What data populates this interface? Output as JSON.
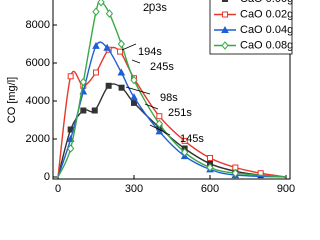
{
  "chart_data": {
    "type": "line",
    "y_label": "CO [mg/l]",
    "xlim": [
      0,
      900
    ],
    "xticks": [
      0,
      300,
      600,
      900
    ],
    "ylim": [
      0,
      10000
    ],
    "yticks": [
      0,
      2000,
      4000,
      6000,
      8000
    ],
    "legend": "upper right",
    "series": [
      {
        "name": "CaO 0.00g",
        "color": "#333333",
        "marker": "square-filled",
        "x": [
          0,
          50,
          100,
          145,
          200,
          251,
          300,
          400,
          500,
          600,
          700,
          800,
          900
        ],
        "values": [
          0,
          2500,
          3500,
          3500,
          4800,
          4700,
          3900,
          2600,
          1500,
          700,
          300,
          100,
          0
        ]
      },
      {
        "name": "CaO 0.02g",
        "color": "#e8372c",
        "marker": "square-open",
        "x": [
          0,
          50,
          100,
          150,
          200,
          245,
          300,
          400,
          500,
          600,
          700,
          800,
          900
        ],
        "values": [
          0,
          5300,
          4800,
          5500,
          6700,
          6600,
          5200,
          3200,
          1900,
          1000,
          500,
          200,
          0
        ]
      },
      {
        "name": "CaO 0.04g",
        "color": "#1f5fd6",
        "marker": "triangle-filled",
        "x": [
          0,
          50,
          100,
          150,
          194,
          250,
          300,
          400,
          500,
          600,
          700,
          900
        ],
        "values": [
          0,
          2000,
          4500,
          6900,
          6800,
          5500,
          4200,
          2400,
          1100,
          400,
          100,
          0
        ]
      },
      {
        "name": "CaO 0.08g",
        "color": "#3aa84a",
        "marker": "diamond-open",
        "x": [
          0,
          50,
          100,
          150,
          170,
          203,
          250,
          300,
          400,
          500,
          600,
          700,
          900
        ],
        "values": [
          0,
          1500,
          5000,
          8700,
          9200,
          8600,
          7000,
          5100,
          2800,
          1300,
          500,
          200,
          0
        ]
      }
    ],
    "annotations": [
      "203s",
      "194s",
      "245s",
      "98s",
      "251s",
      "145s"
    ]
  }
}
